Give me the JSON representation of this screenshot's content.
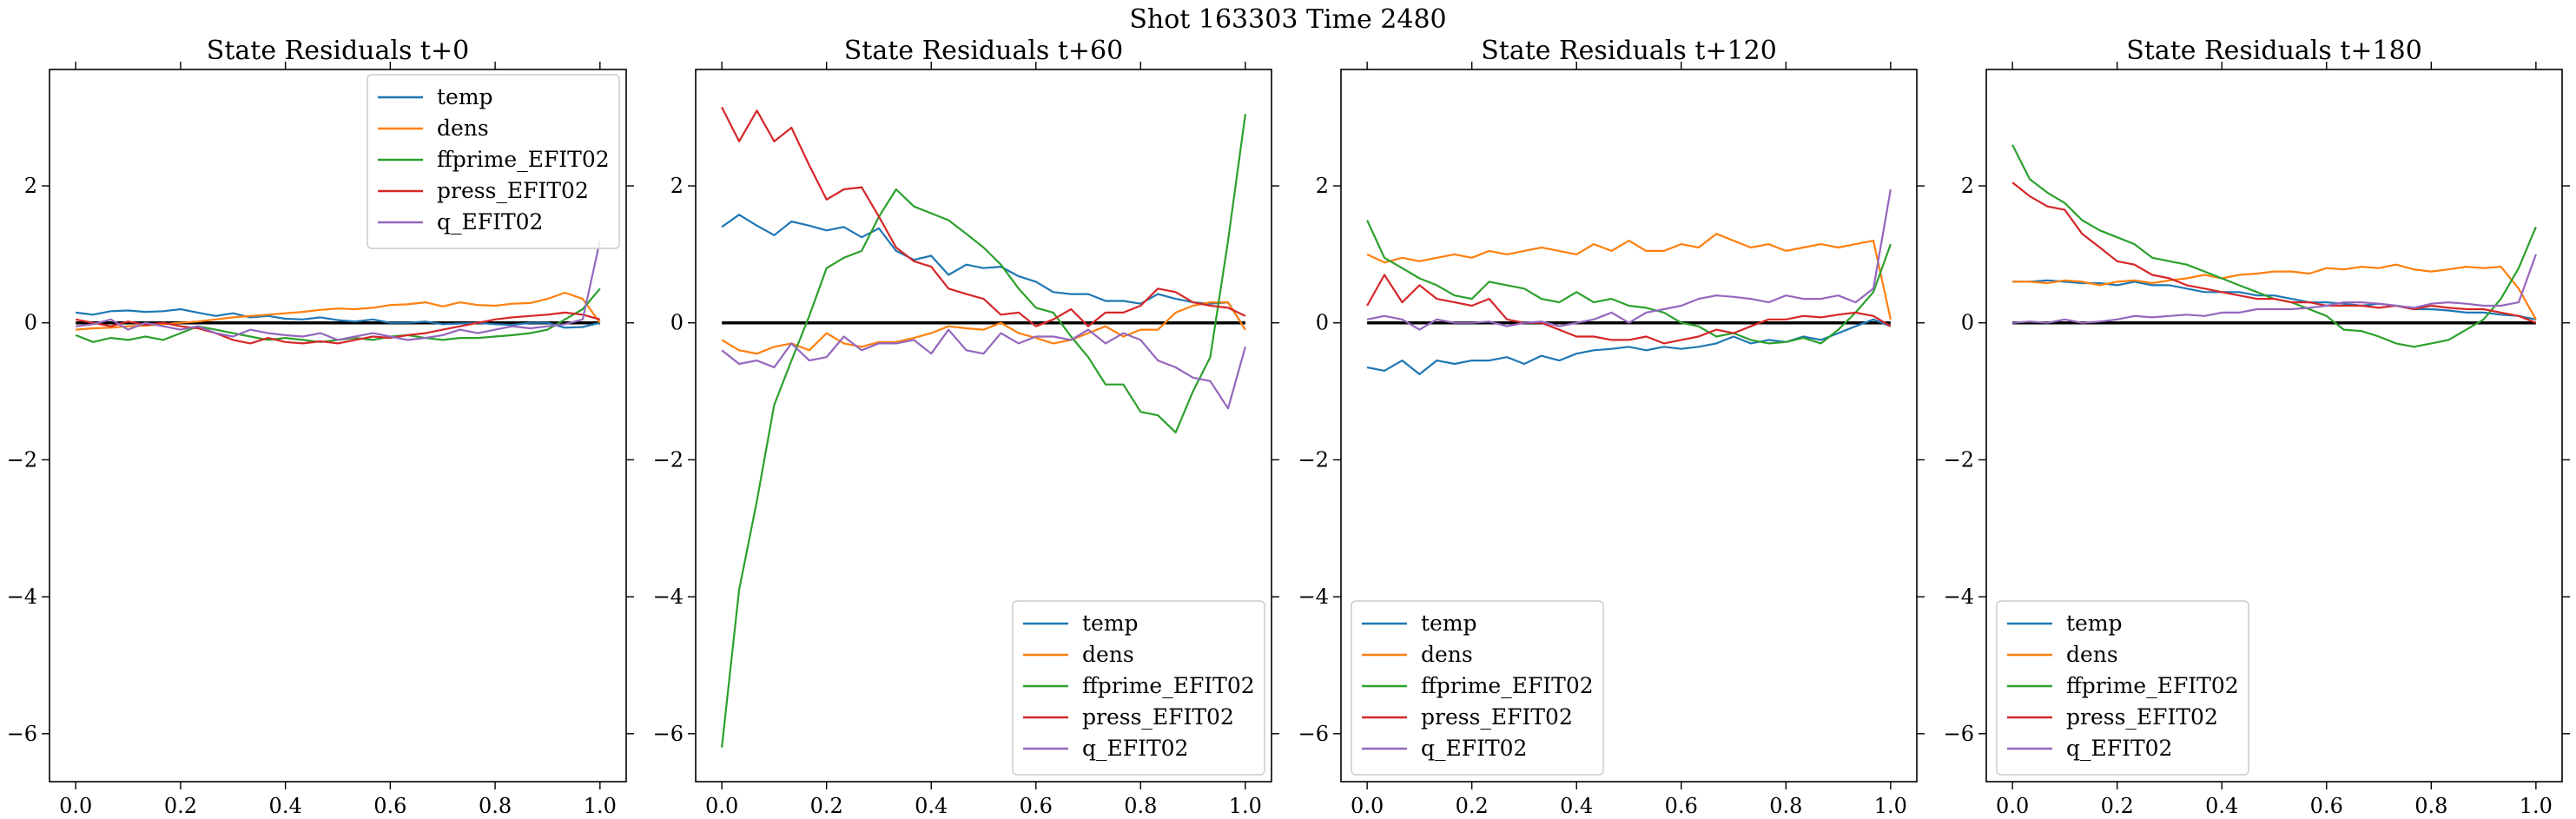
{
  "figure": {
    "suptitle": "Shot 163303   Time 2480"
  },
  "colors": {
    "temp": "#1f77b4",
    "dens": "#ff7f0e",
    "ffprime_EFIT02": "#2ca02c",
    "press_EFIT02": "#d62728",
    "q_EFIT02": "#9467bd",
    "zero_line": "#000000"
  },
  "chart_data": [
    {
      "type": "line",
      "title": "State Residuals t+0",
      "xlim": [
        -0.05,
        1.05
      ],
      "ylim": [
        -6.7,
        3.7
      ],
      "xticks": [
        0.0,
        0.2,
        0.4,
        0.6,
        0.8,
        1.0
      ],
      "xtick_labels": [
        "0.0",
        "0.2",
        "0.4",
        "0.6",
        "0.8",
        "1.0"
      ],
      "yticks": [
        -6,
        -4,
        -2,
        0,
        2
      ],
      "ytick_labels": [
        "−6",
        "−4",
        "−2",
        "0",
        "2"
      ],
      "legend": "top-right",
      "x": [
        0.0,
        0.033,
        0.067,
        0.1,
        0.133,
        0.167,
        0.2,
        0.233,
        0.267,
        0.3,
        0.333,
        0.367,
        0.4,
        0.433,
        0.467,
        0.5,
        0.533,
        0.567,
        0.6,
        0.633,
        0.667,
        0.7,
        0.733,
        0.767,
        0.8,
        0.833,
        0.867,
        0.9,
        0.933,
        0.967,
        1.0
      ],
      "series": [
        {
          "name": "temp",
          "values": [
            0.15,
            0.12,
            0.17,
            0.18,
            0.16,
            0.17,
            0.2,
            0.15,
            0.1,
            0.14,
            0.08,
            0.1,
            0.06,
            0.05,
            0.08,
            0.04,
            0.02,
            0.05,
            0.0,
            0.0,
            0.02,
            -0.02,
            -0.01,
            0.0,
            -0.02,
            -0.03,
            0.0,
            0.0,
            -0.07,
            -0.06,
            0.0
          ]
        },
        {
          "name": "dens",
          "values": [
            -0.1,
            -0.08,
            -0.07,
            -0.05,
            -0.04,
            -0.02,
            0.0,
            0.02,
            0.05,
            0.08,
            0.1,
            0.12,
            0.14,
            0.16,
            0.19,
            0.21,
            0.2,
            0.22,
            0.26,
            0.27,
            0.3,
            0.24,
            0.3,
            0.26,
            0.25,
            0.28,
            0.29,
            0.35,
            0.44,
            0.35,
            0.0
          ]
        },
        {
          "name": "ffprime_EFIT02",
          "values": [
            -0.18,
            -0.28,
            -0.22,
            -0.25,
            -0.2,
            -0.25,
            -0.15,
            -0.05,
            -0.1,
            -0.15,
            -0.2,
            -0.25,
            -0.22,
            -0.25,
            -0.28,
            -0.25,
            -0.22,
            -0.25,
            -0.2,
            -0.18,
            -0.22,
            -0.25,
            -0.22,
            -0.22,
            -0.2,
            -0.18,
            -0.15,
            -0.1,
            0.05,
            0.2,
            0.5
          ]
        },
        {
          "name": "press_EFIT02",
          "values": [
            0.05,
            0.0,
            -0.05,
            0.02,
            -0.03,
            0.0,
            -0.05,
            -0.08,
            -0.15,
            -0.25,
            -0.3,
            -0.22,
            -0.28,
            -0.3,
            -0.27,
            -0.3,
            -0.25,
            -0.2,
            -0.22,
            -0.18,
            -0.15,
            -0.1,
            -0.05,
            0.0,
            0.05,
            0.08,
            0.1,
            0.12,
            0.15,
            0.12,
            0.05
          ]
        },
        {
          "name": "q_EFIT02",
          "values": [
            -0.05,
            -0.02,
            0.05,
            -0.1,
            0.0,
            -0.05,
            -0.1,
            -0.05,
            -0.15,
            -0.2,
            -0.1,
            -0.15,
            -0.18,
            -0.2,
            -0.15,
            -0.25,
            -0.2,
            -0.15,
            -0.2,
            -0.25,
            -0.22,
            -0.18,
            -0.1,
            -0.15,
            -0.1,
            -0.05,
            -0.08,
            -0.05,
            -0.02,
            0.05,
            1.2
          ]
        }
      ]
    },
    {
      "type": "line",
      "title": "State Residuals t+60",
      "xlim": [
        -0.05,
        1.05
      ],
      "ylim": [
        -6.7,
        3.7
      ],
      "xticks": [
        0.0,
        0.2,
        0.4,
        0.6,
        0.8,
        1.0
      ],
      "xtick_labels": [
        "0.0",
        "0.2",
        "0.4",
        "0.6",
        "0.8",
        "1.0"
      ],
      "yticks": [
        -6,
        -4,
        -2,
        0,
        2
      ],
      "ytick_labels": [
        "−6",
        "−4",
        "−2",
        "0",
        "2"
      ],
      "legend": "bottom-right",
      "x": [
        0.0,
        0.033,
        0.067,
        0.1,
        0.133,
        0.167,
        0.2,
        0.233,
        0.267,
        0.3,
        0.333,
        0.367,
        0.4,
        0.433,
        0.467,
        0.5,
        0.533,
        0.567,
        0.6,
        0.633,
        0.667,
        0.7,
        0.733,
        0.767,
        0.8,
        0.833,
        0.867,
        0.9,
        0.933,
        0.967,
        1.0
      ],
      "series": [
        {
          "name": "temp",
          "values": [
            1.4,
            1.58,
            1.42,
            1.28,
            1.48,
            1.42,
            1.35,
            1.4,
            1.25,
            1.38,
            1.05,
            0.92,
            0.98,
            0.7,
            0.85,
            0.8,
            0.82,
            0.68,
            0.6,
            0.45,
            0.42,
            0.42,
            0.32,
            0.32,
            0.28,
            0.42,
            0.35,
            0.3,
            0.28,
            0.3,
            -0.1
          ]
        },
        {
          "name": "dens",
          "values": [
            -0.25,
            -0.4,
            -0.45,
            -0.35,
            -0.3,
            -0.4,
            -0.15,
            -0.3,
            -0.35,
            -0.28,
            -0.28,
            -0.22,
            -0.15,
            -0.05,
            -0.08,
            -0.1,
            0.0,
            -0.15,
            -0.22,
            -0.3,
            -0.25,
            -0.15,
            -0.05,
            -0.2,
            -0.1,
            -0.1,
            0.15,
            0.25,
            0.3,
            0.3,
            -0.1
          ]
        },
        {
          "name": "ffprime_EFIT02",
          "values": [
            -6.2,
            -3.9,
            -2.6,
            -1.2,
            -0.55,
            0.1,
            0.8,
            0.95,
            1.05,
            1.55,
            1.95,
            1.7,
            1.6,
            1.5,
            1.3,
            1.1,
            0.85,
            0.5,
            0.22,
            0.15,
            -0.2,
            -0.5,
            -0.9,
            -0.9,
            -1.3,
            -1.35,
            -1.6,
            -1.0,
            -0.5,
            1.2,
            3.05
          ]
        },
        {
          "name": "press_EFIT02",
          "values": [
            3.15,
            2.65,
            3.1,
            2.65,
            2.85,
            2.3,
            1.8,
            1.95,
            1.98,
            1.55,
            1.1,
            0.9,
            0.82,
            0.5,
            0.42,
            0.35,
            0.12,
            0.15,
            -0.05,
            0.05,
            0.2,
            -0.05,
            0.15,
            0.15,
            0.25,
            0.5,
            0.45,
            0.3,
            0.25,
            0.22,
            0.1
          ]
        },
        {
          "name": "q_EFIT02",
          "values": [
            -0.4,
            -0.6,
            -0.55,
            -0.65,
            -0.3,
            -0.55,
            -0.5,
            -0.2,
            -0.4,
            -0.3,
            -0.3,
            -0.25,
            -0.45,
            -0.1,
            -0.4,
            -0.45,
            -0.15,
            -0.3,
            -0.2,
            -0.2,
            -0.25,
            -0.1,
            -0.3,
            -0.15,
            -0.25,
            -0.55,
            -0.65,
            -0.8,
            -0.85,
            -1.25,
            -0.35
          ]
        }
      ]
    },
    {
      "type": "line",
      "title": "State Residuals t+120",
      "xlim": [
        -0.05,
        1.05
      ],
      "ylim": [
        -6.7,
        3.7
      ],
      "xticks": [
        0.0,
        0.2,
        0.4,
        0.6,
        0.8,
        1.0
      ],
      "xtick_labels": [
        "0.0",
        "0.2",
        "0.4",
        "0.6",
        "0.8",
        "1.0"
      ],
      "yticks": [
        -6,
        -4,
        -2,
        0,
        2
      ],
      "ytick_labels": [
        "−6",
        "−4",
        "−2",
        "0",
        "2"
      ],
      "legend": "bottom-left",
      "x": [
        0.0,
        0.033,
        0.067,
        0.1,
        0.133,
        0.167,
        0.2,
        0.233,
        0.267,
        0.3,
        0.333,
        0.367,
        0.4,
        0.433,
        0.467,
        0.5,
        0.533,
        0.567,
        0.6,
        0.633,
        0.667,
        0.7,
        0.733,
        0.767,
        0.8,
        0.833,
        0.867,
        0.9,
        0.933,
        0.967,
        1.0
      ],
      "series": [
        {
          "name": "temp",
          "values": [
            -0.65,
            -0.7,
            -0.55,
            -0.75,
            -0.55,
            -0.6,
            -0.55,
            -0.55,
            -0.5,
            -0.6,
            -0.48,
            -0.55,
            -0.45,
            -0.4,
            -0.38,
            -0.35,
            -0.4,
            -0.35,
            -0.38,
            -0.35,
            -0.3,
            -0.2,
            -0.3,
            -0.25,
            -0.28,
            -0.2,
            -0.25,
            -0.15,
            -0.05,
            0.05,
            -0.05
          ]
        },
        {
          "name": "dens",
          "values": [
            1.0,
            0.88,
            0.95,
            0.9,
            0.95,
            1.0,
            0.95,
            1.05,
            1.0,
            1.05,
            1.1,
            1.05,
            1.0,
            1.15,
            1.05,
            1.2,
            1.05,
            1.05,
            1.15,
            1.1,
            1.3,
            1.2,
            1.1,
            1.15,
            1.05,
            1.1,
            1.15,
            1.1,
            1.15,
            1.2,
            0.05
          ]
        },
        {
          "name": "ffprime_EFIT02",
          "values": [
            1.5,
            0.95,
            0.8,
            0.65,
            0.55,
            0.4,
            0.35,
            0.6,
            0.55,
            0.5,
            0.35,
            0.3,
            0.45,
            0.3,
            0.35,
            0.25,
            0.22,
            0.15,
            0.0,
            -0.05,
            -0.2,
            -0.15,
            -0.25,
            -0.3,
            -0.28,
            -0.22,
            -0.3,
            -0.1,
            0.15,
            0.45,
            1.15
          ]
        },
        {
          "name": "press_EFIT02",
          "values": [
            0.25,
            0.7,
            0.3,
            0.55,
            0.35,
            0.3,
            0.25,
            0.35,
            0.05,
            0.0,
            0.0,
            -0.1,
            -0.2,
            -0.2,
            -0.25,
            -0.25,
            -0.2,
            -0.3,
            -0.25,
            -0.2,
            -0.1,
            -0.15,
            -0.05,
            0.05,
            0.05,
            0.1,
            0.08,
            0.12,
            0.15,
            0.1,
            -0.05
          ]
        },
        {
          "name": "q_EFIT02",
          "values": [
            0.05,
            0.1,
            0.05,
            -0.1,
            0.05,
            0.0,
            0.0,
            0.02,
            -0.05,
            0.0,
            0.02,
            -0.05,
            0.0,
            0.05,
            0.15,
            0.0,
            0.15,
            0.2,
            0.25,
            0.35,
            0.4,
            0.38,
            0.35,
            0.3,
            0.4,
            0.35,
            0.35,
            0.4,
            0.3,
            0.5,
            1.95
          ]
        }
      ]
    },
    {
      "type": "line",
      "title": "State Residuals t+180",
      "xlim": [
        -0.05,
        1.05
      ],
      "ylim": [
        -6.7,
        3.7
      ],
      "xticks": [
        0.0,
        0.2,
        0.4,
        0.6,
        0.8,
        1.0
      ],
      "xtick_labels": [
        "0.0",
        "0.2",
        "0.4",
        "0.6",
        "0.8",
        "1.0"
      ],
      "yticks": [
        -6,
        -4,
        -2,
        0,
        2
      ],
      "ytick_labels": [
        "−6",
        "−4",
        "−2",
        "0",
        "2"
      ],
      "legend": "bottom-left",
      "x": [
        0.0,
        0.033,
        0.067,
        0.1,
        0.133,
        0.167,
        0.2,
        0.233,
        0.267,
        0.3,
        0.333,
        0.367,
        0.4,
        0.433,
        0.467,
        0.5,
        0.533,
        0.567,
        0.6,
        0.633,
        0.667,
        0.7,
        0.733,
        0.767,
        0.8,
        0.833,
        0.867,
        0.9,
        0.933,
        0.967,
        1.0
      ],
      "series": [
        {
          "name": "temp",
          "values": [
            0.6,
            0.6,
            0.62,
            0.6,
            0.58,
            0.58,
            0.55,
            0.6,
            0.55,
            0.55,
            0.5,
            0.45,
            0.45,
            0.45,
            0.4,
            0.4,
            0.35,
            0.3,
            0.3,
            0.28,
            0.25,
            0.28,
            0.25,
            0.2,
            0.2,
            0.18,
            0.15,
            0.15,
            0.12,
            0.1,
            0.05
          ]
        },
        {
          "name": "dens",
          "values": [
            0.6,
            0.6,
            0.58,
            0.62,
            0.6,
            0.55,
            0.6,
            0.62,
            0.58,
            0.62,
            0.65,
            0.7,
            0.65,
            0.7,
            0.72,
            0.75,
            0.75,
            0.72,
            0.8,
            0.78,
            0.82,
            0.8,
            0.85,
            0.78,
            0.75,
            0.78,
            0.82,
            0.8,
            0.82,
            0.5,
            0.05
          ]
        },
        {
          "name": "ffprime_EFIT02",
          "values": [
            2.6,
            2.1,
            1.9,
            1.75,
            1.5,
            1.35,
            1.25,
            1.15,
            0.95,
            0.9,
            0.85,
            0.75,
            0.65,
            0.55,
            0.45,
            0.35,
            0.3,
            0.2,
            0.1,
            -0.1,
            -0.12,
            -0.2,
            -0.3,
            -0.35,
            -0.3,
            -0.25,
            -0.1,
            0.05,
            0.35,
            0.8,
            1.4
          ]
        },
        {
          "name": "press_EFIT02",
          "values": [
            2.05,
            1.85,
            1.7,
            1.65,
            1.3,
            1.1,
            0.9,
            0.85,
            0.7,
            0.65,
            0.55,
            0.5,
            0.45,
            0.4,
            0.35,
            0.35,
            0.3,
            0.3,
            0.25,
            0.25,
            0.25,
            0.22,
            0.25,
            0.2,
            0.25,
            0.22,
            0.2,
            0.2,
            0.15,
            0.1,
            0.0
          ]
        },
        {
          "name": "q_EFIT02",
          "values": [
            0.0,
            0.02,
            0.0,
            0.05,
            0.0,
            0.02,
            0.05,
            0.1,
            0.08,
            0.1,
            0.12,
            0.1,
            0.15,
            0.15,
            0.2,
            0.2,
            0.2,
            0.22,
            0.25,
            0.3,
            0.3,
            0.28,
            0.25,
            0.22,
            0.28,
            0.3,
            0.28,
            0.25,
            0.25,
            0.3,
            1.0
          ]
        }
      ]
    }
  ]
}
